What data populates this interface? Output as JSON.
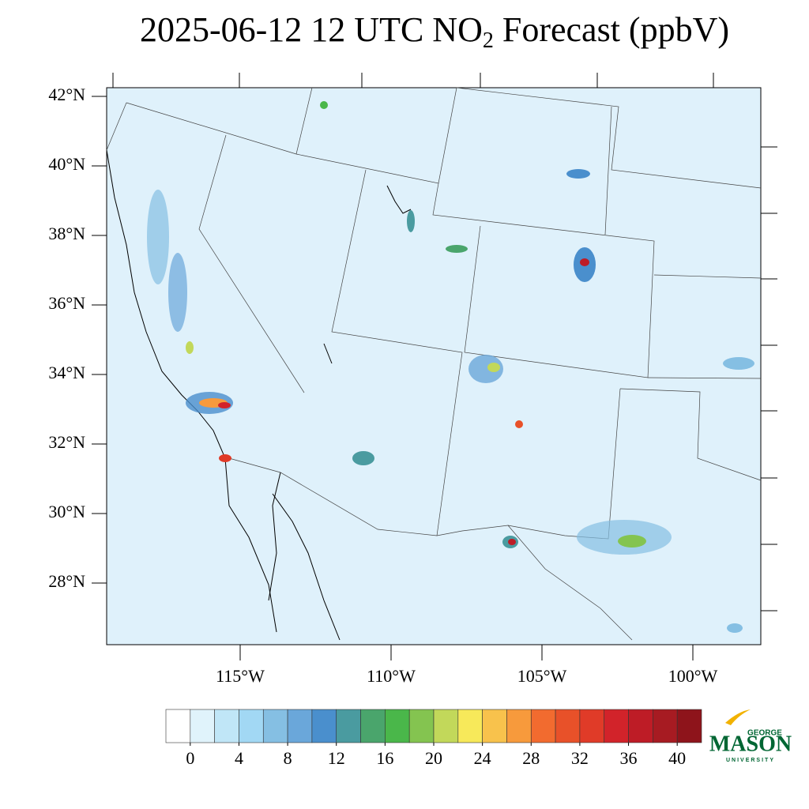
{
  "title": {
    "before": "2025-06-12 12 UTC NO",
    "sub": "2",
    "after": " Forecast (ppbV)"
  },
  "lat_ticks": [
    {
      "value": 42,
      "label": "42°N"
    },
    {
      "value": 40,
      "label": "40°N"
    },
    {
      "value": 38,
      "label": "38°N"
    },
    {
      "value": 36,
      "label": "36°N"
    },
    {
      "value": 34,
      "label": "34°N"
    },
    {
      "value": 32,
      "label": "32°N"
    },
    {
      "value": 30,
      "label": "30°N"
    },
    {
      "value": 28,
      "label": "28°N"
    }
  ],
  "lon_ticks": [
    {
      "value": -115,
      "label": "115°W"
    },
    {
      "value": -110,
      "label": "110°W"
    },
    {
      "value": -105,
      "label": "105°W"
    },
    {
      "value": -100,
      "label": "100°W"
    }
  ],
  "colorbar": {
    "range": [
      -2,
      42
    ],
    "ticks": [
      0,
      4,
      8,
      12,
      16,
      20,
      24,
      28,
      32,
      36,
      40
    ],
    "colors": [
      "#ffffff",
      "#e0f3fb",
      "#c0e6f7",
      "#a2d8f4",
      "#85bfe3",
      "#6aa7da",
      "#4a8fcd",
      "#4a9ba0",
      "#4aa56c",
      "#4ab74a",
      "#84c450",
      "#c2d85a",
      "#f7e95a",
      "#f8c24c",
      "#f79a3c",
      "#f26b2f",
      "#e85129",
      "#e03b28",
      "#d2232a",
      "#be1c26",
      "#a71b22",
      "#8e141b"
    ]
  },
  "logo": {
    "top": "GEORGE",
    "main": "MASON",
    "bottom": "UNIVERSITY"
  }
}
